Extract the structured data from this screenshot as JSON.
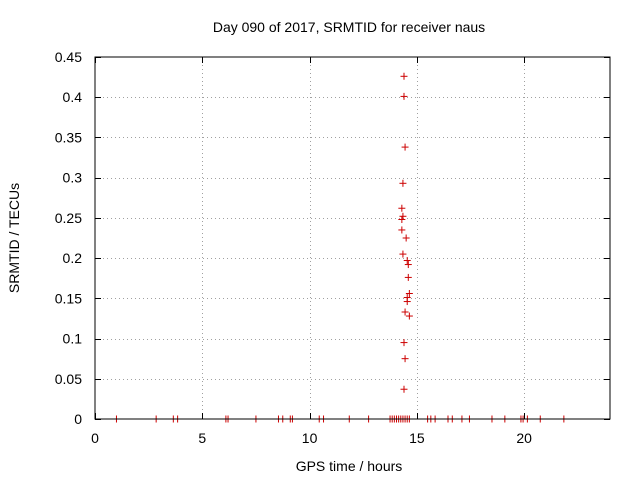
{
  "chart_data": {
    "type": "scatter",
    "title": "Day 090 of 2017, SRMTID for receiver naus",
    "xlabel": "GPS time / hours",
    "ylabel": "SRMTID / TECUs",
    "xlim": [
      0,
      24
    ],
    "ylim": [
      0,
      0.45
    ],
    "xticks": [
      0,
      5,
      10,
      15,
      20
    ],
    "xtick_labels": [
      "0",
      "5",
      "10",
      "15",
      "20"
    ],
    "yticks": [
      0,
      0.05,
      0.1,
      0.15,
      0.2,
      0.25,
      0.3,
      0.35,
      0.4,
      0.45
    ],
    "ytick_labels": [
      "0",
      "0.05",
      "0.1",
      "0.15",
      "0.2",
      "0.25",
      "0.3",
      "0.35",
      "0.4",
      "0.45"
    ],
    "grid": true,
    "marker": "plus",
    "color": "#cc0000",
    "series": [
      {
        "name": "SRMTID",
        "x": [
          1.0,
          2.85,
          3.65,
          3.85,
          6.1,
          6.2,
          7.5,
          8.55,
          8.75,
          9.1,
          9.2,
          10.45,
          10.65,
          11.85,
          12.75,
          13.75,
          13.85,
          13.95,
          14.05,
          14.15,
          14.25,
          14.35,
          14.45,
          14.55,
          14.65,
          15.5,
          15.65,
          15.85,
          16.45,
          16.65,
          17.1,
          17.45,
          18.5,
          19.1,
          19.85,
          19.95,
          20.15,
          20.75,
          21.85,
          14.4,
          14.4,
          14.45,
          14.35,
          14.3,
          14.35,
          14.3,
          14.3,
          14.5,
          14.35,
          14.55,
          14.6,
          14.6,
          14.65,
          14.55,
          14.55,
          14.45,
          14.65,
          14.4,
          14.45,
          14.4
        ],
        "y": [
          0,
          0,
          0,
          0,
          0,
          0,
          0,
          0,
          0,
          0,
          0,
          0,
          0,
          0,
          0,
          0,
          0,
          0,
          0,
          0,
          0,
          0,
          0,
          0,
          0,
          0,
          0,
          0,
          0,
          0,
          0,
          0,
          0,
          0,
          0,
          0,
          0,
          0,
          0,
          0.426,
          0.401,
          0.338,
          0.293,
          0.262,
          0.252,
          0.248,
          0.235,
          0.225,
          0.205,
          0.197,
          0.192,
          0.176,
          0.156,
          0.151,
          0.146,
          0.133,
          0.128,
          0.095,
          0.075,
          0.037
        ]
      }
    ]
  }
}
